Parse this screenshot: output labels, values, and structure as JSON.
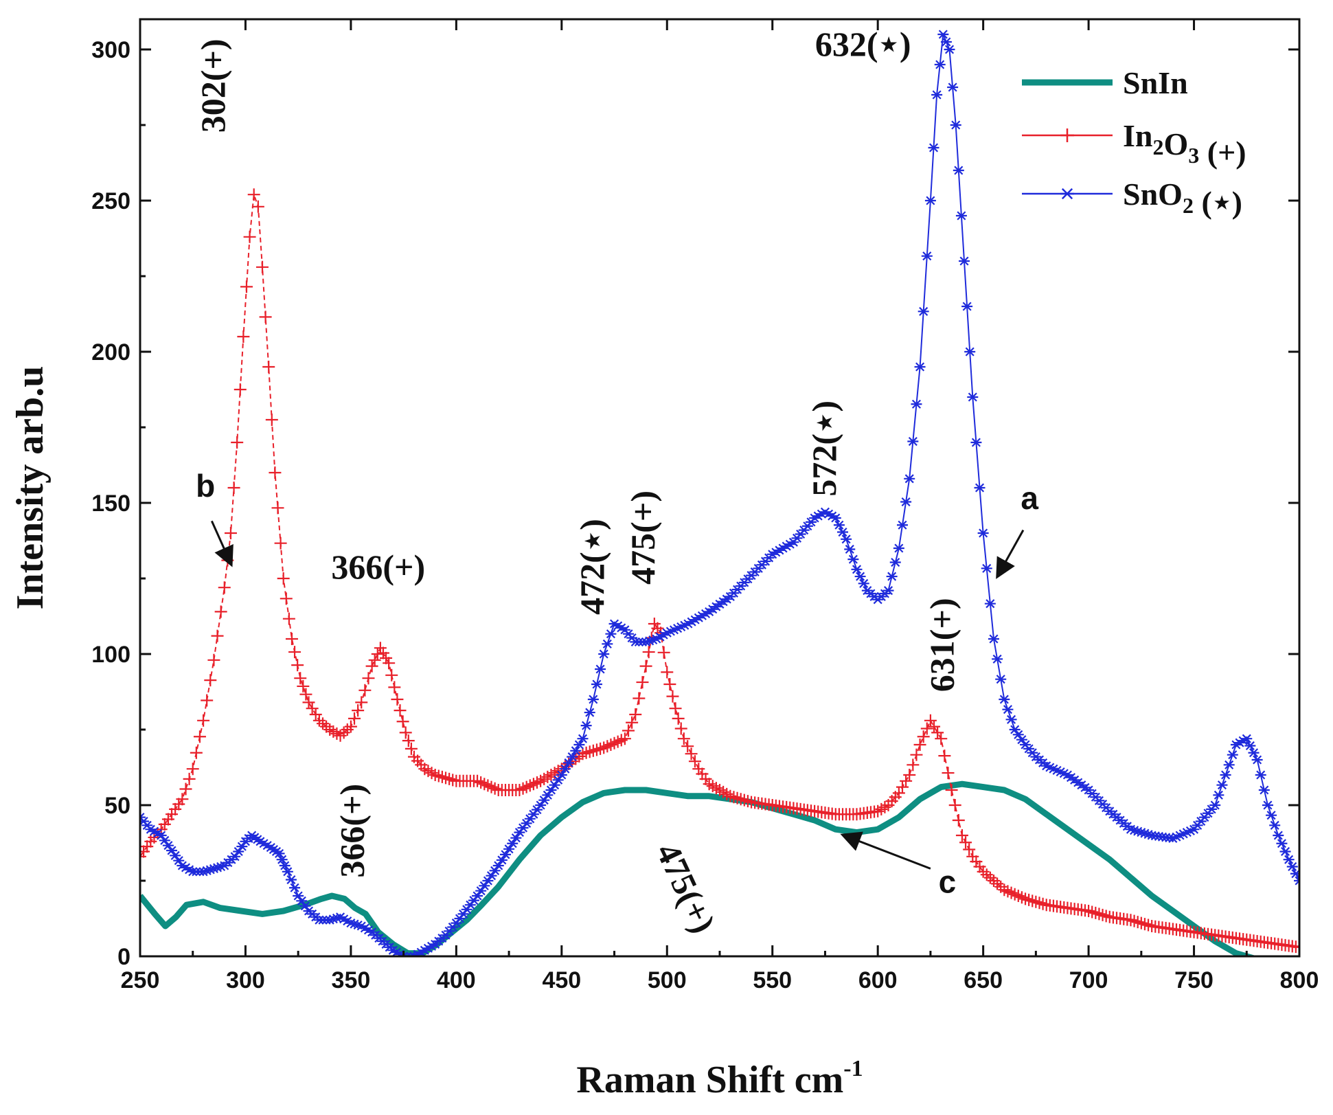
{
  "chart_data": {
    "type": "line",
    "title": "",
    "xlabel": "Raman Shift cm",
    "xlabel_sup": "-1",
    "ylabel": "Intensity arb.u",
    "xlim": [
      250,
      800
    ],
    "ylim": [
      0,
      310
    ],
    "xticks": [
      250,
      300,
      350,
      400,
      450,
      500,
      550,
      600,
      650,
      700,
      750,
      800
    ],
    "yticks": [
      0,
      50,
      100,
      150,
      200,
      250,
      300
    ],
    "grid": false,
    "legend_position": "top-right",
    "series": [
      {
        "name": "SnIn",
        "legend_parts": [
          {
            "t": "SnIn"
          }
        ],
        "color": "#0e8e82",
        "marker": "none",
        "points": [
          [
            250,
            20
          ],
          [
            257,
            14
          ],
          [
            262,
            10
          ],
          [
            267,
            13
          ],
          [
            272,
            17
          ],
          [
            280,
            18
          ],
          [
            288,
            16
          ],
          [
            298,
            15
          ],
          [
            308,
            14
          ],
          [
            318,
            15
          ],
          [
            328,
            17
          ],
          [
            336,
            19
          ],
          [
            341,
            20
          ],
          [
            347,
            19
          ],
          [
            352,
            16
          ],
          [
            357,
            14
          ],
          [
            363,
            8
          ],
          [
            370,
            4
          ],
          [
            377,
            1
          ],
          [
            384,
            1
          ],
          [
            391,
            4
          ],
          [
            398,
            8
          ],
          [
            405,
            12
          ],
          [
            412,
            17
          ],
          [
            420,
            23
          ],
          [
            430,
            32
          ],
          [
            440,
            40
          ],
          [
            450,
            46
          ],
          [
            460,
            51
          ],
          [
            470,
            54
          ],
          [
            480,
            55
          ],
          [
            490,
            55
          ],
          [
            500,
            54
          ],
          [
            510,
            53
          ],
          [
            520,
            53
          ],
          [
            530,
            52
          ],
          [
            540,
            51
          ],
          [
            550,
            49
          ],
          [
            560,
            47
          ],
          [
            570,
            45
          ],
          [
            580,
            42
          ],
          [
            590,
            41
          ],
          [
            600,
            42
          ],
          [
            610,
            46
          ],
          [
            620,
            52
          ],
          [
            630,
            56
          ],
          [
            640,
            57
          ],
          [
            650,
            56
          ],
          [
            660,
            55
          ],
          [
            670,
            52
          ],
          [
            680,
            47
          ],
          [
            690,
            42
          ],
          [
            700,
            37
          ],
          [
            710,
            32
          ],
          [
            720,
            26
          ],
          [
            730,
            20
          ],
          [
            740,
            15
          ],
          [
            750,
            10
          ],
          [
            760,
            5
          ],
          [
            770,
            1
          ],
          [
            780,
            -1
          ],
          [
            800,
            -1
          ]
        ]
      },
      {
        "name": "In2O3 (+)",
        "legend_parts": [
          {
            "t": "In"
          },
          {
            "t": "2",
            "sub": true
          },
          {
            "t": "O"
          },
          {
            "t": "3",
            "sub": true
          },
          {
            "t": " (+)"
          }
        ],
        "color": "#e8202a",
        "marker": "+",
        "points": [
          [
            250,
            33
          ],
          [
            255,
            38
          ],
          [
            260,
            42
          ],
          [
            265,
            47
          ],
          [
            270,
            52
          ],
          [
            275,
            62
          ],
          [
            280,
            78
          ],
          [
            285,
            98
          ],
          [
            290,
            122
          ],
          [
            293,
            140
          ],
          [
            296,
            170
          ],
          [
            299,
            205
          ],
          [
            302,
            238
          ],
          [
            304,
            252
          ],
          [
            306,
            248
          ],
          [
            308,
            228
          ],
          [
            311,
            195
          ],
          [
            314,
            160
          ],
          [
            318,
            125
          ],
          [
            322,
            105
          ],
          [
            326,
            92
          ],
          [
            330,
            84
          ],
          [
            335,
            78
          ],
          [
            340,
            75
          ],
          [
            345,
            73
          ],
          [
            350,
            76
          ],
          [
            355,
            84
          ],
          [
            360,
            96
          ],
          [
            364,
            102
          ],
          [
            368,
            97
          ],
          [
            372,
            85
          ],
          [
            376,
            74
          ],
          [
            380,
            66
          ],
          [
            385,
            62
          ],
          [
            390,
            60
          ],
          [
            400,
            58
          ],
          [
            410,
            58
          ],
          [
            420,
            55
          ],
          [
            430,
            55
          ],
          [
            440,
            58
          ],
          [
            450,
            62
          ],
          [
            460,
            67
          ],
          [
            470,
            69
          ],
          [
            480,
            72
          ],
          [
            485,
            80
          ],
          [
            490,
            96
          ],
          [
            494,
            110
          ],
          [
            497,
            107
          ],
          [
            500,
            94
          ],
          [
            504,
            82
          ],
          [
            508,
            72
          ],
          [
            515,
            62
          ],
          [
            520,
            57
          ],
          [
            530,
            53
          ],
          [
            540,
            51
          ],
          [
            550,
            50
          ],
          [
            560,
            49
          ],
          [
            570,
            48
          ],
          [
            580,
            47
          ],
          [
            590,
            47
          ],
          [
            600,
            48
          ],
          [
            605,
            50
          ],
          [
            610,
            54
          ],
          [
            615,
            60
          ],
          [
            620,
            70
          ],
          [
            625,
            78
          ],
          [
            630,
            72
          ],
          [
            635,
            55
          ],
          [
            640,
            40
          ],
          [
            645,
            33
          ],
          [
            650,
            28
          ],
          [
            660,
            22
          ],
          [
            670,
            19
          ],
          [
            680,
            17
          ],
          [
            690,
            16
          ],
          [
            700,
            15
          ],
          [
            710,
            13
          ],
          [
            720,
            12
          ],
          [
            730,
            10
          ],
          [
            740,
            9
          ],
          [
            750,
            8
          ],
          [
            760,
            7
          ],
          [
            770,
            6
          ],
          [
            780,
            5
          ],
          [
            790,
            4
          ],
          [
            800,
            3
          ]
        ]
      },
      {
        "name": "SnO2 (*)",
        "legend_parts": [
          {
            "t": "SnO"
          },
          {
            "t": "2",
            "sub": true
          },
          {
            "t": " (⋆)"
          }
        ],
        "color": "#1f2bdb",
        "marker": "*",
        "points": [
          [
            250,
            46
          ],
          [
            255,
            42
          ],
          [
            260,
            40
          ],
          [
            265,
            35
          ],
          [
            270,
            30
          ],
          [
            275,
            28
          ],
          [
            280,
            28
          ],
          [
            285,
            29
          ],
          [
            290,
            30
          ],
          [
            295,
            33
          ],
          [
            300,
            38
          ],
          [
            303,
            40
          ],
          [
            307,
            38
          ],
          [
            312,
            36
          ],
          [
            316,
            34
          ],
          [
            320,
            28
          ],
          [
            325,
            20
          ],
          [
            330,
            15
          ],
          [
            335,
            12
          ],
          [
            340,
            12
          ],
          [
            345,
            13
          ],
          [
            350,
            11
          ],
          [
            355,
            10
          ],
          [
            360,
            8
          ],
          [
            365,
            5
          ],
          [
            370,
            2
          ],
          [
            375,
            0
          ],
          [
            380,
            0
          ],
          [
            385,
            2
          ],
          [
            390,
            4
          ],
          [
            395,
            7
          ],
          [
            400,
            11
          ],
          [
            410,
            20
          ],
          [
            420,
            30
          ],
          [
            430,
            41
          ],
          [
            440,
            50
          ],
          [
            450,
            60
          ],
          [
            460,
            72
          ],
          [
            465,
            85
          ],
          [
            470,
            100
          ],
          [
            475,
            110
          ],
          [
            480,
            108
          ],
          [
            485,
            104
          ],
          [
            490,
            104
          ],
          [
            495,
            105
          ],
          [
            500,
            107
          ],
          [
            510,
            110
          ],
          [
            520,
            114
          ],
          [
            530,
            119
          ],
          [
            540,
            126
          ],
          [
            550,
            133
          ],
          [
            560,
            137
          ],
          [
            565,
            141
          ],
          [
            570,
            145
          ],
          [
            575,
            147
          ],
          [
            580,
            145
          ],
          [
            585,
            138
          ],
          [
            590,
            128
          ],
          [
            595,
            121
          ],
          [
            600,
            118
          ],
          [
            605,
            121
          ],
          [
            610,
            135
          ],
          [
            615,
            158
          ],
          [
            620,
            195
          ],
          [
            625,
            250
          ],
          [
            628,
            285
          ],
          [
            631,
            305
          ],
          [
            634,
            300
          ],
          [
            637,
            275
          ],
          [
            641,
            230
          ],
          [
            645,
            185
          ],
          [
            650,
            140
          ],
          [
            655,
            105
          ],
          [
            660,
            85
          ],
          [
            665,
            75
          ],
          [
            670,
            70
          ],
          [
            675,
            66
          ],
          [
            680,
            63
          ],
          [
            690,
            60
          ],
          [
            700,
            55
          ],
          [
            710,
            48
          ],
          [
            720,
            42
          ],
          [
            730,
            40
          ],
          [
            740,
            39
          ],
          [
            750,
            42
          ],
          [
            760,
            50
          ],
          [
            765,
            60
          ],
          [
            770,
            70
          ],
          [
            775,
            72
          ],
          [
            780,
            65
          ],
          [
            785,
            50
          ],
          [
            790,
            40
          ],
          [
            795,
            32
          ],
          [
            800,
            25
          ]
        ]
      }
    ],
    "annotations": [
      {
        "text": "302(+)",
        "x": 290,
        "y": 288,
        "rotate": -90,
        "anchor": "middle"
      },
      {
        "text": "366(+)",
        "x": 363,
        "y": 125,
        "rotate": 0,
        "anchor": "middle"
      },
      {
        "text": "366(+)",
        "x": 356,
        "y": 26,
        "rotate": -90,
        "anchor": "start"
      },
      {
        "text": "472(⋆)",
        "x": 470,
        "y": 113,
        "rotate": -90,
        "anchor": "start"
      },
      {
        "text": "475(+)",
        "x": 494,
        "y": 123,
        "rotate": -90,
        "anchor": "start"
      },
      {
        "text": "572(⋆)",
        "x": 580,
        "y": 168,
        "rotate": -90,
        "anchor": "middle"
      },
      {
        "text": "632(⋆)",
        "x": 593,
        "y": 298,
        "rotate": 0,
        "anchor": "middle"
      },
      {
        "text": "631(+)",
        "x": 636,
        "y": 103,
        "rotate": -90,
        "anchor": "middle"
      },
      {
        "text": "475(+)",
        "x": 504,
        "y": 21,
        "rotate": 65,
        "anchor": "middle"
      }
    ],
    "curve_labels": [
      {
        "text": "b",
        "x": 281,
        "y": 152,
        "arrow_from": [
          284,
          144
        ],
        "arrow_to": [
          293,
          130
        ]
      },
      {
        "text": "a",
        "x": 672,
        "y": 148,
        "arrow_from": [
          669,
          141
        ],
        "arrow_to": [
          657,
          126
        ]
      },
      {
        "text": "c",
        "x": 633,
        "y": 21,
        "arrow_from": [
          625,
          29
        ],
        "arrow_to": [
          584,
          40
        ]
      }
    ]
  }
}
